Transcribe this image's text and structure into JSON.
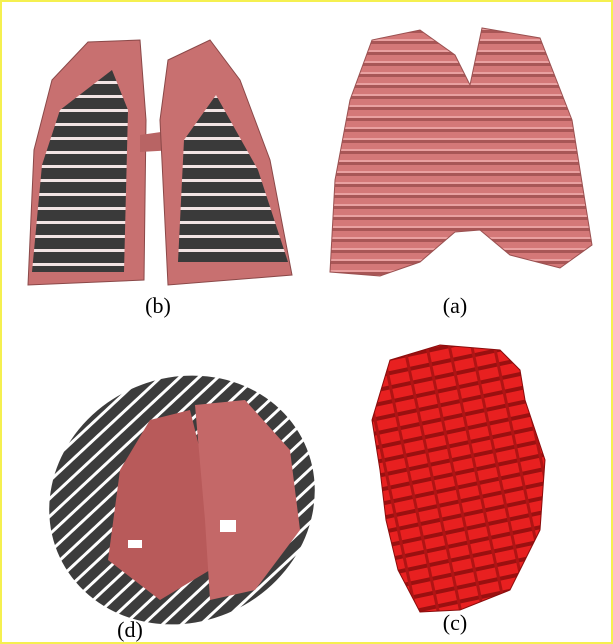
{
  "panels": [
    {
      "label": "(b)"
    },
    {
      "label": "(a)"
    },
    {
      "label": "(d)"
    },
    {
      "label": "(c)"
    }
  ]
}
